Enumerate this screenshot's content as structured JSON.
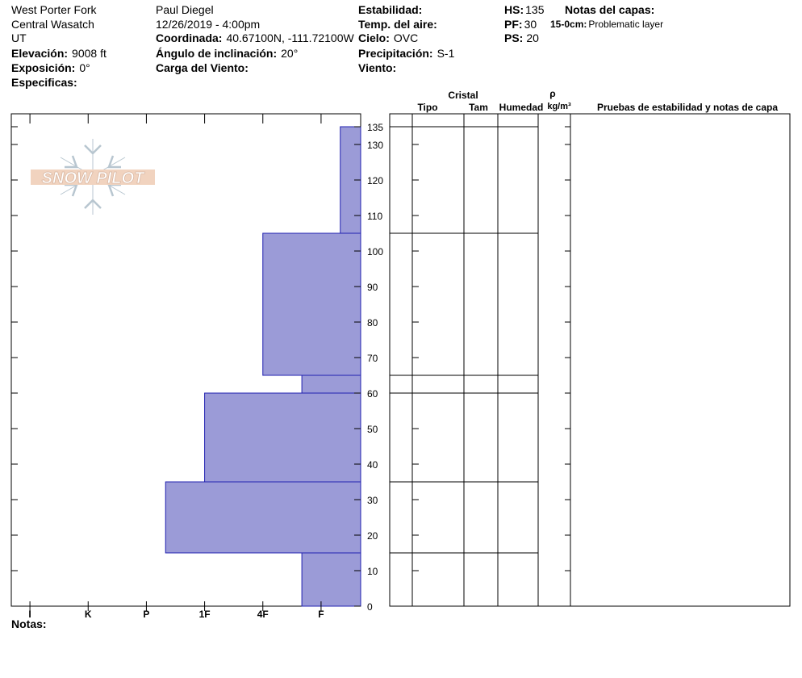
{
  "header": {
    "location": [
      "West Porter Fork",
      "Central Wasatch",
      "UT"
    ],
    "elevation": {
      "label": "Elevación:",
      "value": "9008 ft"
    },
    "aspect": {
      "label": "Exposición:",
      "value": "0°"
    },
    "specifics": {
      "label": "Especificas:"
    },
    "observer": "Paul Diegel",
    "datetime": "12/26/2019 - 4:00pm",
    "coordinates": {
      "label": "Coordinada:",
      "value": "40.67100N, -111.72100W"
    },
    "slope": {
      "label": "Ángulo de inclinación:",
      "value": "20°"
    },
    "wind_load": {
      "label": "Carga del Viento:"
    },
    "stability": {
      "label": "Estabilidad:"
    },
    "air_temp": {
      "label": "Temp. del aire:"
    },
    "sky": {
      "label": "Cielo:",
      "value": "OVC"
    },
    "precip": {
      "label": "Precipitación:",
      "value": "S-1"
    },
    "wind": {
      "label": "Viento:"
    },
    "hs": {
      "label": "HS:",
      "value": 135
    },
    "pf": {
      "label": "PF:",
      "value": 30
    },
    "ps": {
      "label": "PS:",
      "value": 20
    },
    "layer_notes_title": "Notas del capas:",
    "layer_note": {
      "label": "15-0cm:",
      "value": "Problematic layer"
    }
  },
  "logo": "SNOW PILOT",
  "chart_data": {
    "type": "snow-profile",
    "ylim": [
      0,
      135
    ],
    "yticks": [
      0,
      10,
      20,
      30,
      40,
      50,
      60,
      70,
      80,
      90,
      100,
      110,
      120,
      130,
      135
    ],
    "xlim": [
      6.32,
      0.32
    ],
    "xticks": [
      {
        "value": 6,
        "label": "I"
      },
      {
        "value": 5,
        "label": "K"
      },
      {
        "value": 4,
        "label": "P"
      },
      {
        "value": 3,
        "label": "1F"
      },
      {
        "value": 2,
        "label": "4F"
      },
      {
        "value": 1,
        "label": "F"
      }
    ],
    "color": "#9b9bd7",
    "layers": [
      {
        "top": 15,
        "bottom": 0,
        "hardness": 1.33
      },
      {
        "top": 35,
        "bottom": 15,
        "hardness": 3.67
      },
      {
        "top": 60,
        "bottom": 35,
        "hardness": 3
      },
      {
        "top": 65,
        "bottom": 60,
        "hardness": 1.33
      },
      {
        "top": 105,
        "bottom": 65,
        "hardness": 2
      },
      {
        "top": 135,
        "bottom": 105,
        "hardness": 0.67
      }
    ]
  },
  "table": {
    "headers": {
      "crystal": "Cristal",
      "type": "Tipo",
      "size": "Tam",
      "moisture": "Humedad",
      "density_symbol": "ρ",
      "density_unit": "kg/m³",
      "tests": "Pruebas de estabilidad y notas de capa"
    }
  },
  "notes": {
    "label": "Notas:"
  }
}
